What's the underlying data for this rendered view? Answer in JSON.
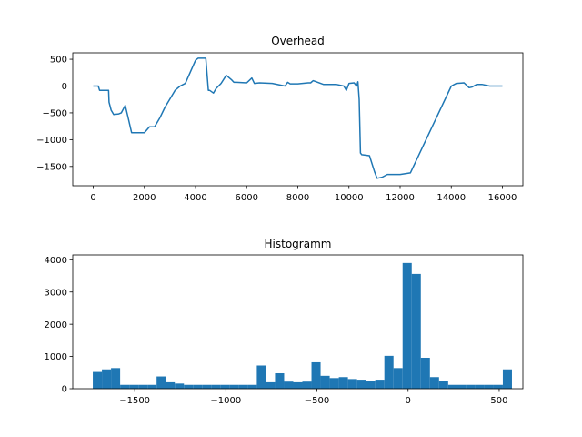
{
  "chart_data": [
    {
      "type": "line",
      "title": "Overhead",
      "xlabel": "",
      "ylabel": "",
      "xlim": [
        -800,
        16800
      ],
      "ylim": [
        -1860,
        620
      ],
      "x_ticks": [
        0,
        2000,
        4000,
        6000,
        8000,
        10000,
        12000,
        14000,
        16000
      ],
      "x_tick_labels": [
        "0",
        "2000",
        "4000",
        "6000",
        "8000",
        "10000",
        "12000",
        "14000",
        "16000"
      ],
      "y_ticks": [
        500,
        0,
        -500,
        -1000,
        -1500
      ],
      "y_tick_labels": [
        "500",
        "0",
        "−500",
        "−1000",
        "−1500"
      ],
      "grid": false,
      "color": "#1f77b4",
      "series": [
        {
          "x": [
            0,
            200,
            250,
            600,
            620,
            700,
            800,
            1000,
            1100,
            1250,
            1350,
            1500,
            1520,
            2000,
            2200,
            2400,
            2600,
            2800,
            3200,
            3400,
            3600,
            4000,
            4100,
            4400,
            4500,
            4550,
            4700,
            4800,
            5000,
            5200,
            5400,
            5500,
            5600,
            6000,
            6200,
            6300,
            6500,
            7000,
            7500,
            7600,
            7700,
            8000,
            8400,
            8500,
            8600,
            9000,
            9500,
            9800,
            9900,
            10000,
            10200,
            10300,
            10350,
            10400,
            10450,
            10500,
            10800,
            11000,
            11100,
            11300,
            11500,
            12000,
            12400,
            14000,
            14200,
            14500,
            14700,
            14800,
            15000,
            15200,
            15500,
            16000
          ],
          "y": [
            0,
            0,
            -80,
            -80,
            -300,
            -450,
            -530,
            -520,
            -500,
            -360,
            -560,
            -870,
            -870,
            -870,
            -760,
            -760,
            -600,
            -400,
            -80,
            0,
            50,
            480,
            520,
            520,
            -80,
            -80,
            -130,
            -50,
            50,
            200,
            120,
            70,
            70,
            60,
            150,
            50,
            60,
            50,
            0,
            70,
            40,
            40,
            60,
            60,
            100,
            30,
            30,
            0,
            -80,
            50,
            60,
            0,
            80,
            -250,
            -1250,
            -1280,
            -1300,
            -1600,
            -1720,
            -1700,
            -1650,
            -1650,
            -1620,
            0,
            50,
            60,
            -30,
            -20,
            30,
            30,
            0,
            0
          ]
        }
      ]
    },
    {
      "type": "bar",
      "title": "Histogramm",
      "xlabel": "",
      "ylabel": "",
      "xlim": [
        -1840,
        630
      ],
      "ylim": [
        0,
        4150
      ],
      "x_ticks": [
        -1500,
        -1000,
        -500,
        0,
        500
      ],
      "x_tick_labels": [
        "−1500",
        "−1000",
        "−500",
        "0",
        "500"
      ],
      "y_ticks": [
        0,
        1000,
        2000,
        3000,
        4000
      ],
      "y_tick_labels": [
        "0",
        "1000",
        "2000",
        "3000",
        "4000"
      ],
      "grid": false,
      "color": "#1f77b4",
      "bin_start": -1730,
      "bin_width": 50,
      "values": [
        520,
        600,
        640,
        120,
        120,
        120,
        120,
        380,
        200,
        160,
        120,
        120,
        120,
        120,
        120,
        120,
        120,
        120,
        720,
        200,
        480,
        220,
        200,
        220,
        820,
        400,
        330,
        360,
        300,
        280,
        240,
        280,
        1020,
        640,
        3900,
        3560,
        960,
        360,
        240,
        120,
        120,
        120,
        120,
        120,
        120,
        600
      ]
    }
  ]
}
